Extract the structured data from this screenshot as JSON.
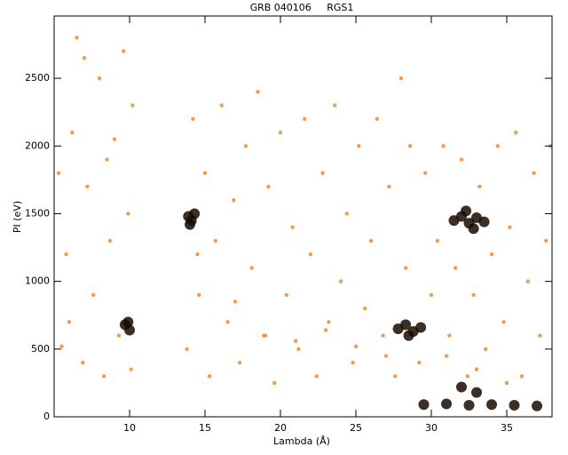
{
  "chart_data": {
    "type": "scatter",
    "title": "GRB 040106     RGS1",
    "x_label": "Lambda (Å)",
    "y_label": "PI (eV)",
    "xlim": [
      5,
      38
    ],
    "ylim": [
      0,
      2960
    ],
    "xticks": [
      10,
      15,
      20,
      25,
      30,
      35
    ],
    "yticks": [
      0,
      500,
      1000,
      1500,
      2000,
      2500
    ],
    "series": [
      {
        "color": "#f08a30",
        "radius": 2.2,
        "x": [
          5.5,
          5.8,
          6.2,
          6.5,
          6.9,
          7.2,
          7.6,
          8.0,
          8.3,
          8.7,
          9.0,
          9.3,
          9.6,
          9.9,
          10.1,
          10.2,
          5.3,
          7.0,
          8.5,
          6.0,
          13.8,
          14.2,
          14.6,
          15.0,
          15.3,
          15.7,
          16.1,
          16.5,
          16.9,
          17.3,
          17.7,
          18.1,
          18.5,
          18.9,
          19.2,
          19.6,
          20.0,
          20.4,
          20.8,
          21.2,
          21.6,
          22.0,
          22.4,
          22.8,
          23.2,
          23.6,
          24.0,
          24.4,
          24.8,
          25.2,
          25.6,
          26.0,
          26.4,
          26.8,
          27.2,
          27.6,
          28.0,
          28.3,
          28.6,
          29.2,
          29.6,
          30.0,
          30.4,
          30.8,
          31.2,
          31.6,
          32.0,
          32.4,
          32.8,
          33.2,
          33.6,
          34.0,
          34.4,
          34.8,
          35.2,
          35.6,
          36.0,
          36.4,
          36.8,
          37.2,
          37.6,
          37.9,
          14.5,
          17,
          19,
          21,
          23,
          25,
          27,
          31,
          33,
          35
        ],
        "y": [
          520,
          1200,
          2100,
          2800,
          400,
          1700,
          900,
          2500,
          300,
          1300,
          2050,
          600,
          2700,
          1500,
          350,
          2300,
          1800,
          2650,
          1900,
          700,
          500,
          2200,
          900,
          1800,
          300,
          1300,
          2300,
          700,
          1600,
          400,
          2000,
          1100,
          2400,
          600,
          1700,
          250,
          2100,
          900,
          1400,
          500,
          2200,
          1200,
          300,
          1800,
          700,
          2300,
          1000,
          1500,
          400,
          2000,
          800,
          1300,
          2200,
          600,
          1700,
          300,
          2500,
          1100,
          2000,
          400,
          1800,
          900,
          1300,
          2000,
          600,
          1100,
          1900,
          300,
          900,
          1700,
          500,
          1200,
          2000,
          700,
          1400,
          2100,
          300,
          1000,
          1800,
          600,
          1300,
          2000,
          1200,
          850,
          600,
          560,
          640,
          520,
          450,
          450,
          350,
          250
        ]
      },
      {
        "color": "#1a0a00",
        "radius": 6,
        "x": [
          13.9,
          14.1,
          14.3,
          14.0,
          31.5,
          32.0,
          32.5,
          33.0,
          33.5,
          32.3,
          32.8,
          27.8,
          28.3,
          28.8,
          29.3,
          28.5,
          9.7,
          10.0,
          9.9,
          29.5,
          31,
          32.5,
          34,
          35.5,
          37,
          33,
          32
        ],
        "y": [
          1480,
          1450,
          1500,
          1420,
          1450,
          1480,
          1430,
          1470,
          1440,
          1520,
          1390,
          650,
          680,
          630,
          660,
          600,
          680,
          640,
          700,
          90,
          95,
          85,
          90,
          85,
          80,
          180,
          220
        ]
      }
    ]
  }
}
